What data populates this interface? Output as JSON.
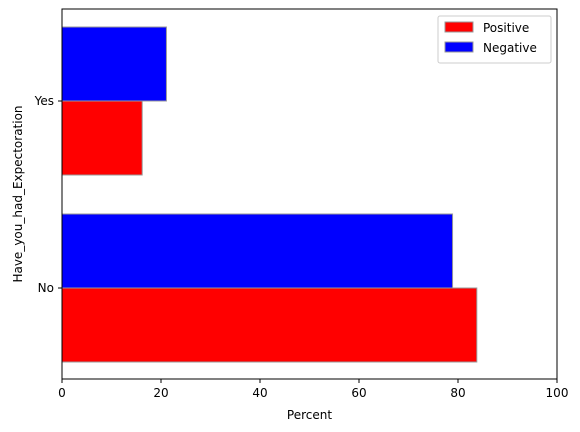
{
  "chart_data": {
    "type": "bar",
    "orientation": "horizontal",
    "categories": [
      "No",
      "Yes"
    ],
    "series": [
      {
        "name": "Positive",
        "values": [
          83.8,
          16.2
        ],
        "color": "#ff0000"
      },
      {
        "name": "Negative",
        "values": [
          78.9,
          21.1
        ],
        "color": "#0000ff"
      }
    ],
    "xlabel": "Percent",
    "ylabel": "Have_you_had_Expectoration",
    "xlim": [
      0,
      100
    ],
    "xticks": [
      0,
      20,
      40,
      60,
      80,
      100
    ],
    "legend_position": "top-right",
    "bar_edge_color": "#999999"
  }
}
